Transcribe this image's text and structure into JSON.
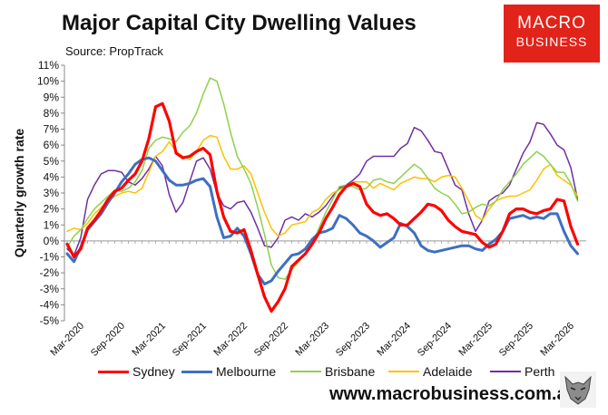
{
  "title": "Major Capital City Dwelling Values",
  "source": "Source: PropTrack",
  "logo": {
    "line1": "MACRO",
    "line2": "BUSINESS"
  },
  "website": "www.macrobusiness.com.au",
  "mascot_icon": "wolf-mascot-icon",
  "chart_data": {
    "type": "line",
    "title": "Major Capital City Dwelling Values",
    "xlabel": "",
    "ylabel": "Quarterly growth rate",
    "ylim": [
      -5,
      11
    ],
    "yticks": [
      "-5%",
      "-4%",
      "-3%",
      "-2%",
      "-1%",
      "0%",
      "1%",
      "2%",
      "3%",
      "4%",
      "5%",
      "6%",
      "7%",
      "8%",
      "9%",
      "10%",
      "11%"
    ],
    "xticks": [
      "Mar-2020",
      "Sep-2020",
      "Mar-2021",
      "Sep-2021",
      "Mar-2022",
      "Sep-2022",
      "Mar-2023",
      "Sep-2023",
      "Mar-2024",
      "Sep-2024",
      "Mar-2025",
      "Sep-2025",
      "Mar-2026"
    ],
    "x": [
      "Jan-2020",
      "Feb-2020",
      "Mar-2020",
      "Apr-2020",
      "May-2020",
      "Jun-2020",
      "Jul-2020",
      "Aug-2020",
      "Sep-2020",
      "Oct-2020",
      "Nov-2020",
      "Dec-2020",
      "Jan-2021",
      "Feb-2021",
      "Mar-2021",
      "Apr-2021",
      "May-2021",
      "Jun-2021",
      "Jul-2021",
      "Aug-2021",
      "Sep-2021",
      "Oct-2021",
      "Nov-2021",
      "Dec-2021",
      "Jan-2022",
      "Feb-2022",
      "Mar-2022",
      "Apr-2022",
      "May-2022",
      "Jun-2022",
      "Jul-2022",
      "Aug-2022",
      "Sep-2022",
      "Oct-2022",
      "Nov-2022",
      "Dec-2022",
      "Jan-2023",
      "Feb-2023",
      "Mar-2023",
      "Apr-2023",
      "May-2023",
      "Jun-2023",
      "Jul-2023",
      "Aug-2023",
      "Sep-2023",
      "Oct-2023",
      "Nov-2023",
      "Dec-2023",
      "Jan-2024",
      "Feb-2024",
      "Mar-2024",
      "Apr-2024",
      "May-2024",
      "Jun-2024",
      "Jul-2024",
      "Aug-2024",
      "Sep-2024",
      "Oct-2024",
      "Nov-2024",
      "Dec-2024",
      "Jan-2025",
      "Feb-2025",
      "Mar-2025",
      "Apr-2025",
      "May-2025",
      "Jun-2025",
      "Jul-2025",
      "Aug-2025",
      "Sep-2025",
      "Oct-2025",
      "Nov-2025",
      "Dec-2025",
      "Jan-2026",
      "Feb-2026",
      "Mar-2026",
      "Apr-2026"
    ],
    "grid": false,
    "legend_position": "bottom",
    "series": [
      {
        "name": "Sydney",
        "color": "#ff0000",
        "width": 3.2,
        "values": [
          -0.2,
          -1.0,
          -0.5,
          0.8,
          1.3,
          1.9,
          2.6,
          3.1,
          3.3,
          3.8,
          4.2,
          5.0,
          6.4,
          8.4,
          8.6,
          7.5,
          5.5,
          5.2,
          5.3,
          5.6,
          5.8,
          5.4,
          3.1,
          1.5,
          0.6,
          0.5,
          0.7,
          -0.6,
          -2.1,
          -3.5,
          -4.4,
          -3.8,
          -3.0,
          -1.6,
          -1.2,
          -0.8,
          -0.2,
          0.5,
          1.4,
          2.1,
          2.9,
          3.4,
          3.6,
          3.4,
          2.3,
          1.8,
          1.6,
          1.7,
          1.4,
          1.0,
          1.0,
          1.4,
          1.8,
          2.3,
          2.2,
          1.9,
          1.3,
          0.9,
          0.6,
          0.5,
          0.4,
          -0.1,
          -0.4,
          -0.2,
          0.6,
          1.7,
          2.0,
          2.0,
          1.8,
          1.7,
          1.9,
          2.0,
          2.6,
          2.5,
          0.9,
          -0.2
        ]
      },
      {
        "name": "Melbourne",
        "color": "#3e6fc1",
        "width": 3.0,
        "values": [
          -0.8,
          -1.3,
          -0.4,
          0.7,
          1.2,
          1.7,
          2.4,
          3.0,
          3.7,
          4.2,
          4.8,
          5.1,
          5.2,
          5.0,
          4.4,
          3.8,
          3.5,
          3.5,
          3.6,
          3.8,
          3.9,
          3.4,
          1.5,
          0.2,
          0.3,
          0.8,
          0.3,
          -0.8,
          -2.1,
          -2.7,
          -2.5,
          -1.9,
          -1.4,
          -0.9,
          -0.8,
          -0.5,
          0.1,
          0.5,
          0.6,
          0.8,
          1.6,
          1.4,
          1.0,
          0.5,
          0.3,
          0.0,
          -0.4,
          -0.1,
          0.2,
          1.1,
          0.9,
          0.5,
          -0.3,
          -0.6,
          -0.7,
          -0.6,
          -0.5,
          -0.4,
          -0.3,
          -0.3,
          -0.5,
          -0.6,
          -0.2,
          0.1,
          0.6,
          1.4,
          1.5,
          1.6,
          1.4,
          1.5,
          1.4,
          1.7,
          1.7,
          0.6,
          -0.3,
          -0.8
        ]
      },
      {
        "name": "Brisbane",
        "color": "#8fd04b",
        "width": 1.5,
        "values": [
          -0.4,
          0.3,
          0.7,
          1.4,
          2.0,
          2.4,
          2.8,
          3.2,
          3.1,
          3.3,
          3.7,
          4.4,
          5.8,
          6.3,
          6.5,
          6.4,
          6.2,
          6.8,
          7.2,
          8.0,
          9.2,
          10.2,
          10.0,
          8.6,
          6.8,
          5.3,
          4.5,
          3.6,
          2.1,
          0.4,
          -1.5,
          -2.3,
          -2.4,
          -1.8,
          -1.3,
          -0.8,
          -0.2,
          0.8,
          1.8,
          2.6,
          3.4,
          3.5,
          3.4,
          3.2,
          3.3,
          3.8,
          3.9,
          3.7,
          3.6,
          4.0,
          4.4,
          4.8,
          4.5,
          3.9,
          3.3,
          3.0,
          2.8,
          2.3,
          1.7,
          1.8,
          2.1,
          2.3,
          2.2,
          2.5,
          3.2,
          3.7,
          4.2,
          4.8,
          5.2,
          5.6,
          5.3,
          4.8,
          4.3,
          4.3,
          3.6,
          2.5
        ]
      },
      {
        "name": "Adelaide",
        "color": "#ffc000",
        "width": 1.5,
        "values": [
          0.6,
          0.8,
          0.7,
          1.1,
          1.7,
          2.1,
          2.5,
          2.8,
          3.0,
          3.1,
          3.0,
          3.3,
          4.3,
          5.3,
          5.6,
          6.2,
          5.6,
          5.3,
          5.1,
          5.6,
          6.3,
          6.6,
          6.5,
          5.3,
          4.5,
          4.5,
          4.7,
          4.2,
          3.0,
          1.8,
          0.8,
          0.3,
          0.5,
          1.0,
          1.1,
          1.2,
          1.8,
          2.0,
          2.6,
          3.0,
          3.2,
          3.4,
          3.7,
          3.7,
          3.7,
          3.3,
          3.6,
          3.4,
          3.2,
          3.6,
          3.8,
          4.0,
          3.9,
          3.9,
          3.7,
          4.0,
          4.1,
          4.0,
          3.3,
          2.5,
          1.6,
          1.3,
          2.0,
          2.5,
          2.7,
          2.8,
          2.8,
          3.0,
          3.2,
          3.8,
          4.5,
          4.8,
          4.1,
          3.8,
          3.5,
          2.8
        ]
      },
      {
        "name": "Perth",
        "color": "#7030a0",
        "width": 1.5,
        "values": [
          -0.5,
          -0.9,
          0.2,
          2.6,
          3.5,
          4.2,
          4.4,
          4.4,
          4.3,
          3.7,
          3.5,
          3.9,
          4.5,
          5.3,
          4.7,
          2.9,
          1.8,
          2.4,
          3.7,
          5.0,
          5.2,
          4.5,
          3.0,
          2.2,
          2.0,
          2.4,
          2.5,
          1.8,
          0.8,
          -0.3,
          -0.4,
          0.2,
          1.3,
          1.5,
          1.3,
          1.7,
          1.5,
          1.8,
          2.2,
          2.8,
          3.3,
          3.5,
          3.8,
          4.2,
          5.0,
          5.3,
          5.3,
          5.3,
          5.3,
          5.8,
          6.1,
          7.1,
          6.9,
          6.3,
          5.6,
          5.5,
          4.5,
          3.5,
          3.2,
          1.7,
          0.6,
          1.3,
          2.5,
          2.8,
          3.0,
          3.5,
          4.5,
          5.5,
          6.2,
          7.4,
          7.3,
          6.7,
          6.0,
          5.7,
          4.6,
          2.6
        ]
      }
    ]
  }
}
